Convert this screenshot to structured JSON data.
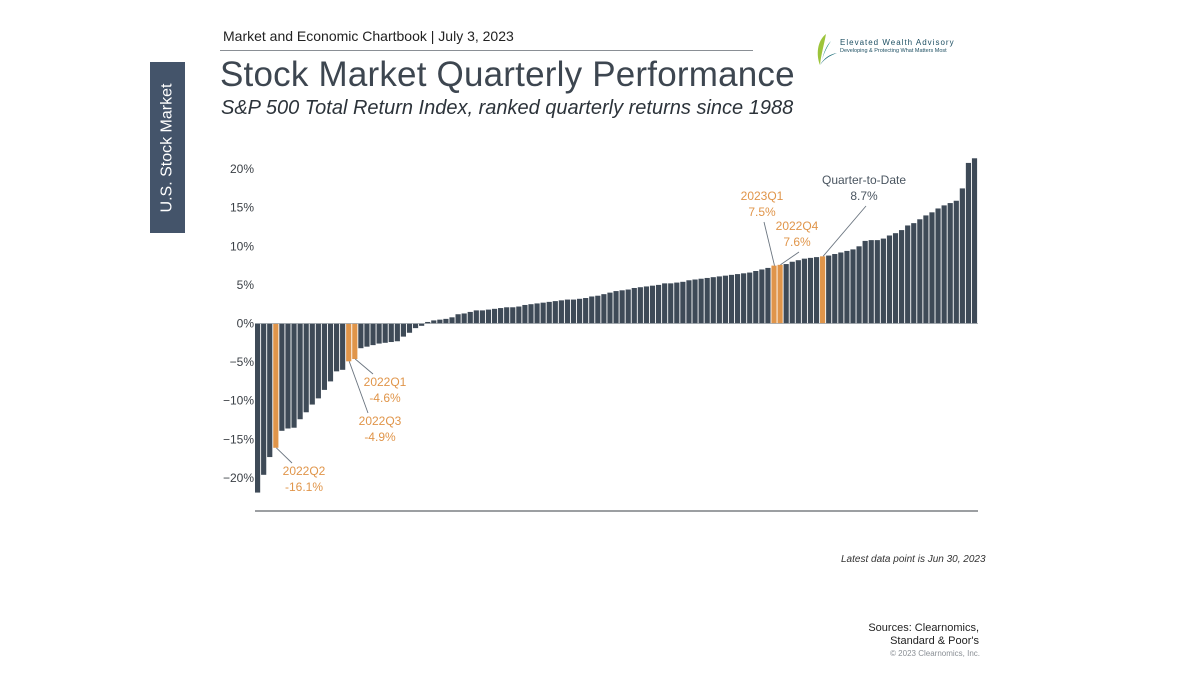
{
  "side_tab": "U.S. Stock Market",
  "header": {
    "chartbook": "Market and Economic Chartbook | July 3, 2023"
  },
  "logo": {
    "name": "Elevated Wealth Advisory",
    "tagline": "Developing & Protecting What Matters Most"
  },
  "colors": {
    "bar": "#3e4a57",
    "highlight": "#e0954a",
    "sidebar": "#44546a",
    "annotation_dark": "#4a5560"
  },
  "chart_data": {
    "type": "bar",
    "title": "Stock Market Quarterly Performance",
    "subtitle": "S&P 500 Total Return Index, ranked quarterly returns since 1988",
    "xlabel": "",
    "ylabel": "",
    "ylim": [
      -22,
      22
    ],
    "yticks": [
      20,
      15,
      10,
      5,
      0,
      -5,
      -10,
      -15,
      -20
    ],
    "ytick_labels": [
      "20%",
      "15%",
      "10%",
      "5%",
      "0%",
      "−5%",
      "−10%",
      "−15%",
      "−20%"
    ],
    "values": [
      -21.9,
      -19.6,
      -17.3,
      -16.1,
      -13.9,
      -13.6,
      -13.5,
      -12.4,
      -11.5,
      -10.5,
      -9.7,
      -8.6,
      -7.5,
      -6.2,
      -6.0,
      -4.9,
      -4.6,
      -3.2,
      -3.0,
      -2.8,
      -2.6,
      -2.5,
      -2.4,
      -2.3,
      -1.7,
      -1.2,
      -0.6,
      -0.3,
      0.2,
      0.4,
      0.5,
      0.6,
      0.8,
      1.2,
      1.3,
      1.5,
      1.7,
      1.7,
      1.8,
      1.9,
      2.0,
      2.1,
      2.1,
      2.2,
      2.4,
      2.5,
      2.6,
      2.7,
      2.8,
      2.9,
      3.0,
      3.1,
      3.1,
      3.2,
      3.3,
      3.5,
      3.6,
      3.8,
      4.0,
      4.2,
      4.3,
      4.4,
      4.6,
      4.7,
      4.8,
      4.9,
      5.0,
      5.2,
      5.2,
      5.3,
      5.4,
      5.6,
      5.7,
      5.8,
      5.9,
      6.0,
      6.1,
      6.2,
      6.3,
      6.4,
      6.5,
      6.6,
      6.8,
      7.0,
      7.2,
      7.5,
      7.6,
      7.7,
      8.0,
      8.2,
      8.4,
      8.5,
      8.6,
      8.7,
      8.8,
      9.0,
      9.2,
      9.4,
      9.6,
      10.0,
      10.7,
      10.8,
      10.8,
      11.0,
      11.4,
      11.7,
      12.1,
      12.7,
      13.0,
      13.5,
      14.0,
      14.4,
      14.9,
      15.3,
      15.6,
      15.9,
      17.5,
      20.8,
      21.4
    ],
    "highlighted": [
      {
        "index": 3,
        "label": "2022Q2",
        "value_label": "-16.1%"
      },
      {
        "index": 15,
        "label": "2022Q3",
        "value_label": "-4.9%"
      },
      {
        "index": 16,
        "label": "2022Q1",
        "value_label": "-4.6%"
      },
      {
        "index": 85,
        "label": "2023Q1",
        "value_label": "7.5%"
      },
      {
        "index": 86,
        "label": "2022Q4",
        "value_label": "7.6%"
      },
      {
        "index": 93,
        "label": "Quarter-to-Date",
        "value_label": "8.7%"
      }
    ],
    "grid": false,
    "legend": "none"
  },
  "footer": {
    "latest": "Latest data point is Jun 30, 2023",
    "sources_line1": "Sources: Clearnomics,",
    "sources_line2": "Standard & Poor's",
    "copyright": "© 2023 Clearnomics, Inc."
  }
}
